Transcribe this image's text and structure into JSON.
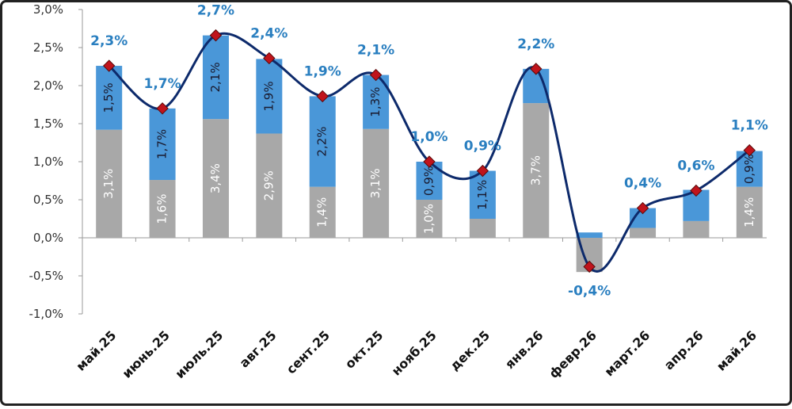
{
  "colors": {
    "grey_bar": "#a8a8a8",
    "blue_bar": "#4a97d8",
    "line": "#0d2a6b",
    "marker": "#c0141c",
    "total_label": "#2a7fc0",
    "axis": "#9a9a9a"
  },
  "chart_data": {
    "type": "bar",
    "stacked": true,
    "categories": [
      "май.25",
      "июнь.25",
      "июль.25",
      "авг.25",
      "сент.25",
      "окт.25",
      "нояб.25",
      "дек.25",
      "янв.26",
      "февр.26",
      "март.26",
      "апр.26",
      "май.26"
    ],
    "series": [
      {
        "values": [
          1.42,
          0.76,
          1.56,
          1.37,
          0.67,
          1.43,
          0.5,
          0.25,
          1.77,
          -0.45,
          0.13,
          0.22,
          0.67
        ],
        "labels": [
          "3,1%",
          "1,6%",
          "3,4%",
          "2,9%",
          "1,4%",
          "3,1%",
          "1,0%",
          "",
          "3,7%",
          "",
          "",
          "",
          "1,4%"
        ]
      },
      {
        "values": [
          0.84,
          0.94,
          1.1,
          0.98,
          1.19,
          0.71,
          0.5,
          0.63,
          0.45,
          0.07,
          0.26,
          0.41,
          0.47
        ],
        "labels": [
          "1,5%",
          "1,7%",
          "2,1%",
          "1,9%",
          "2,2%",
          "1,3%",
          "0,9%",
          "1,1%",
          "",
          "",
          "",
          "",
          "0,9%"
        ]
      }
    ],
    "line": {
      "values": [
        2.26,
        1.7,
        2.66,
        2.36,
        1.86,
        2.14,
        1.0,
        0.88,
        2.22,
        -0.38,
        0.39,
        0.62,
        1.15
      ],
      "labels": [
        "2,3%",
        "1,7%",
        "2,7%",
        "2,4%",
        "1,9%",
        "2,1%",
        "1,0%",
        "0,9%",
        "2,2%",
        "-0,4%",
        "0,4%",
        "0,6%",
        "1,1%"
      ]
    },
    "ylim": [
      -1.0,
      3.0
    ],
    "yticks": [
      -1.0,
      -0.5,
      0.0,
      0.5,
      1.0,
      1.5,
      2.0,
      2.5,
      3.0
    ],
    "ytick_labels": [
      "-1,0%",
      "-0,5%",
      "0,0%",
      "0,5%",
      "1,0%",
      "1,5%",
      "2,0%",
      "2,5%",
      "3,0%"
    ],
    "grid": false,
    "legend": "none"
  }
}
